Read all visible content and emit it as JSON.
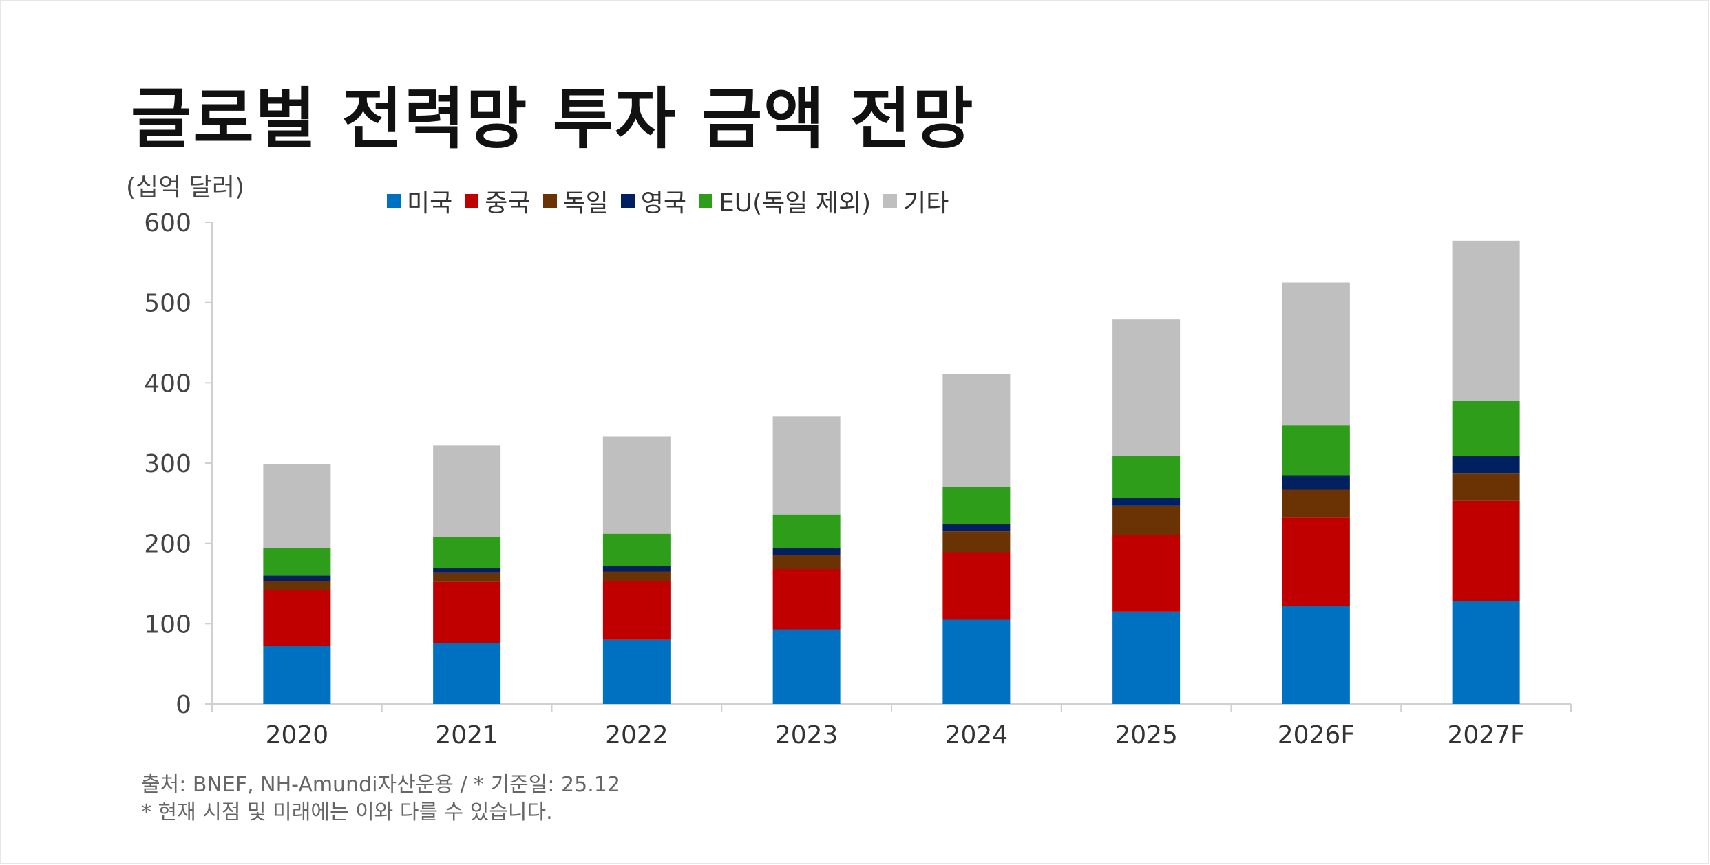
{
  "title": "글로벌 전력망 투자 금액 전망",
  "unit_label": "(십억 달러)",
  "source": "출처: BNEF, NH-Amundi자산운용 / * 기준일: 25.12",
  "note": "* 현재 시점 및 미래에는 이와 다를 수 있습니다.",
  "chart_data": {
    "type": "bar",
    "stacked": true,
    "categories": [
      "2020",
      "2021",
      "2022",
      "2023",
      "2024",
      "2025",
      "2026F",
      "2027F"
    ],
    "ylim": [
      0,
      600
    ],
    "yticks": [
      0,
      100,
      200,
      300,
      400,
      500,
      600
    ],
    "grid": false,
    "legend_position": "top",
    "series": [
      {
        "name": "미국",
        "color": "#0070C0",
        "values": [
          72,
          76,
          80,
          93,
          105,
          115,
          122,
          128
        ]
      },
      {
        "name": "중국",
        "color": "#C00000",
        "values": [
          70,
          76,
          73,
          75,
          84,
          95,
          110,
          125
        ]
      },
      {
        "name": "독일",
        "color": "#6B3304",
        "values": [
          11,
          12,
          12,
          18,
          26,
          37,
          35,
          34
        ]
      },
      {
        "name": "영국",
        "color": "#002060",
        "values": [
          7,
          5,
          7,
          8,
          9,
          10,
          18,
          22
        ]
      },
      {
        "name": "EU(독일 제외)",
        "color": "#2E9E1A",
        "values": [
          34,
          39,
          40,
          42,
          46,
          52,
          62,
          69
        ]
      },
      {
        "name": "기타",
        "color": "#BFBFBF",
        "values": [
          105,
          114,
          121,
          122,
          141,
          170,
          178,
          199
        ]
      }
    ]
  }
}
